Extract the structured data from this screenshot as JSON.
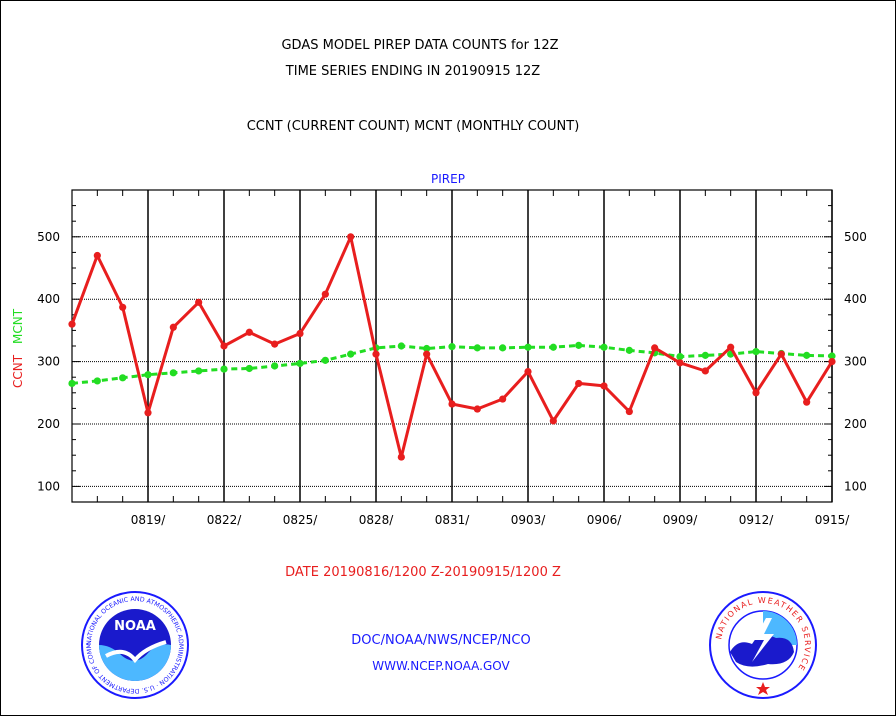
{
  "header": {
    "title_line1": "GDAS MODEL PIREP DATA COUNTS for 12Z",
    "title_line2": "TIME SERIES ENDING IN 20190915 12Z",
    "subtitle": "CCNT (CURRENT COUNT) MCNT (MONTHLY COUNT)"
  },
  "footer": {
    "date_range": "DATE 20190816/1200 Z-20190915/1200 Z",
    "org_path": "DOC/NOAA/NWS/NCEP/NCO",
    "website": "WWW.NCEP.NOAA.GOV"
  },
  "logos": {
    "noaa": {
      "center_text": "NOAA",
      "ring_text": "NATIONAL OCEANIC AND ATMOSPHERIC ADMINISTRATION · U.S. DEPARTMENT OF COMMERCE"
    },
    "nws": {
      "ring_text": "NATIONAL WEATHER SERVICE"
    }
  },
  "chart_data": {
    "type": "line",
    "panel_label": "PIREP",
    "ylabel_parts": [
      {
        "text": "CCNT",
        "color": "#e81e1e"
      },
      {
        "text": "MCNT",
        "color": "#22dd22"
      }
    ],
    "ylim": [
      75,
      575
    ],
    "yticks": [
      100,
      200,
      300,
      400,
      500
    ],
    "xlabels": [
      "0819/",
      "0822/",
      "0825/",
      "0828/",
      "0831/",
      "0903/",
      "0906/",
      "0909/",
      "0912/",
      "0915/"
    ],
    "x_dates": [
      "0816",
      "0817",
      "0818",
      "0819",
      "0820",
      "0821",
      "0822",
      "0823",
      "0824",
      "0825",
      "0826",
      "0827",
      "0828",
      "0829",
      "0830",
      "0831",
      "0901",
      "0902",
      "0903",
      "0904",
      "0905",
      "0906",
      "0907",
      "0908",
      "0909",
      "0910",
      "0911",
      "0912",
      "0913",
      "0914",
      "0915"
    ],
    "grid": true,
    "series": [
      {
        "name": "CCNT",
        "color": "#e81e1e",
        "style": "solid",
        "values": [
          360,
          470,
          387,
          218,
          355,
          395,
          325,
          347,
          328,
          345,
          408,
          500,
          312,
          147,
          312,
          232,
          224,
          240,
          284,
          205,
          265,
          261,
          220,
          322,
          298,
          285,
          323,
          250,
          312,
          235,
          300
        ]
      },
      {
        "name": "MCNT",
        "color": "#22dd22",
        "style": "dashed",
        "values": [
          265,
          269,
          274,
          279,
          282,
          285,
          288,
          289,
          293,
          297,
          302,
          312,
          322,
          325,
          321,
          324,
          322,
          322,
          323,
          323,
          326,
          323,
          318,
          314,
          308,
          310,
          312,
          316,
          313,
          310,
          309
        ]
      }
    ]
  }
}
